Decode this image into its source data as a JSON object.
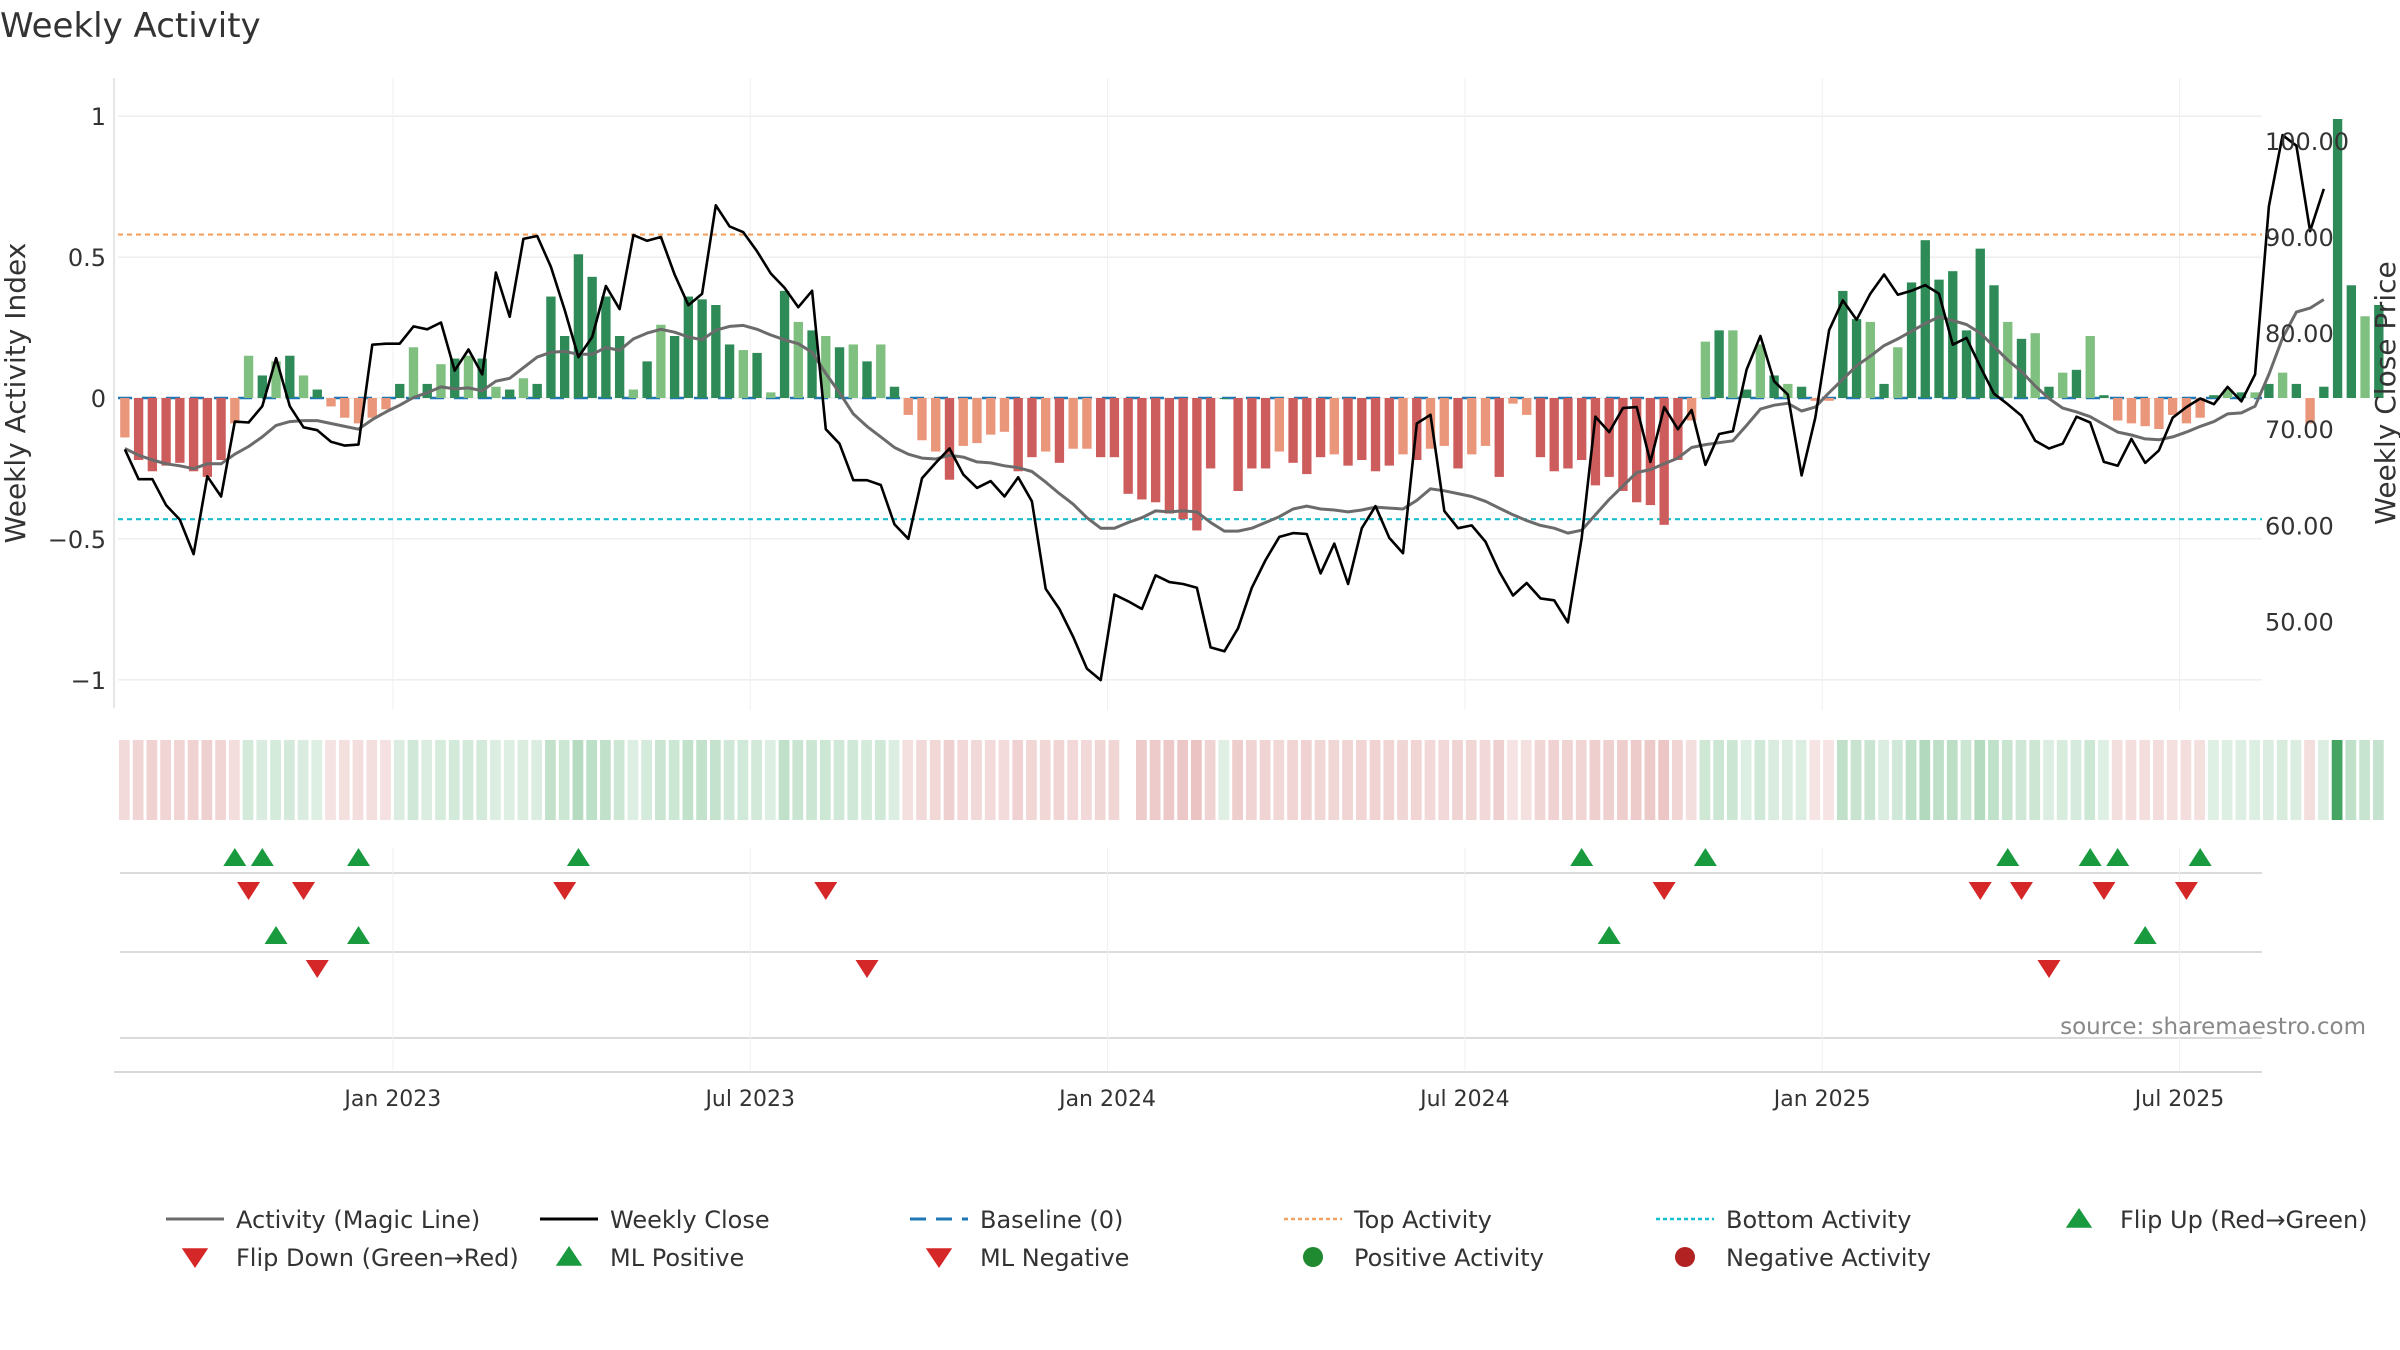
{
  "chart_data": {
    "type": "bar",
    "title": "Weekly Activity",
    "ylabel_left": "Weekly Activity Index",
    "ylabel_right": "Weekly Close Price",
    "ylim_left": [
      -1.1,
      1.1
    ],
    "ylim_right": [
      41.0,
      105.5
    ],
    "left_ticks": [
      {
        "v": 1,
        "label": "1"
      },
      {
        "v": 0.5,
        "label": "0.5"
      },
      {
        "v": 0,
        "label": "0"
      },
      {
        "v": -0.5,
        "label": "−0.5"
      },
      {
        "v": -1,
        "label": "−1"
      }
    ],
    "right_ticks": [
      {
        "v": 100,
        "label": "100.00"
      },
      {
        "v": 90,
        "label": "90.00"
      },
      {
        "v": 80,
        "label": "80.00"
      },
      {
        "v": 70,
        "label": "70.00"
      },
      {
        "v": 60,
        "label": "60.00"
      },
      {
        "v": 50,
        "label": "50.00"
      }
    ],
    "x_ticks": [
      {
        "week": 20,
        "label": "Jan 2023"
      },
      {
        "week": 46,
        "label": "Jul 2023"
      },
      {
        "week": 72,
        "label": "Jan 2024"
      },
      {
        "week": 98,
        "label": "Jul 2024"
      },
      {
        "week": 124,
        "label": "Jan 2025"
      },
      {
        "week": 150,
        "label": "Jul 2025"
      }
    ],
    "x_range_weeks": [
      0,
      156
    ],
    "top_activity": 0.58,
    "bottom_activity": -0.43,
    "baseline": 0,
    "activity": [
      -0.14,
      -0.22,
      -0.26,
      -0.24,
      -0.23,
      -0.26,
      -0.28,
      -0.22,
      -0.09,
      0.15,
      0.08,
      0.13,
      0.15,
      0.08,
      0.03,
      -0.03,
      -0.07,
      -0.09,
      -0.07,
      -0.04,
      0.05,
      0.18,
      0.05,
      0.12,
      0.14,
      0.15,
      0.14,
      0.04,
      0.03,
      0.07,
      0.05,
      0.36,
      0.22,
      0.51,
      0.43,
      0.36,
      0.22,
      0.03,
      0.13,
      0.26,
      0.22,
      0.36,
      0.35,
      0.33,
      0.19,
      0.17,
      0.16,
      0.02,
      0.38,
      0.27,
      0.24,
      0.22,
      0.18,
      0.19,
      0.13,
      0.19,
      0.04,
      -0.06,
      -0.15,
      -0.19,
      -0.29,
      -0.17,
      -0.16,
      -0.13,
      -0.12,
      -0.26,
      -0.21,
      -0.19,
      -0.23,
      -0.18,
      -0.18,
      -0.21,
      -0.21,
      -0.34,
      -0.36,
      -0.37,
      -0.41,
      -0.43,
      -0.47,
      -0.25,
      0,
      -0.33,
      -0.25,
      -0.25,
      -0.19,
      -0.23,
      -0.27,
      -0.21,
      -0.2,
      -0.24,
      -0.22,
      -0.26,
      -0.24,
      -0.2,
      -0.22,
      -0.18,
      -0.17,
      -0.25,
      -0.2,
      -0.17,
      -0.28,
      -0.02,
      -0.06,
      -0.21,
      -0.26,
      -0.25,
      -0.22,
      -0.31,
      -0.28,
      -0.33,
      -0.37,
      -0.38,
      -0.45,
      -0.22,
      -0.08,
      0.2,
      0.24,
      0.24,
      0.03,
      0.19,
      0.08,
      0.05,
      0.04,
      -0.01,
      -0.01,
      0.38,
      0.28,
      0.27,
      0.05,
      0.18,
      0.41,
      0.56,
      0.42,
      0.45,
      0.24,
      0.53,
      0.4,
      0.27,
      0.21,
      0.23,
      0.04,
      0.09,
      0.1,
      0.22,
      0.01,
      -0.08,
      -0.09,
      -0.1,
      -0.11,
      -0.06,
      -0.09,
      -0.07,
      0.01,
      0.03,
      0.02,
      0.02,
      0.05,
      0.09,
      0.05,
      -0.09,
      0.04,
      0.99,
      0.4,
      0.29,
      0.33
    ],
    "weekly_close": [
      67.9,
      64.8,
      64.8,
      62.1,
      60.6,
      57.0,
      65.1,
      63.0,
      70.8,
      70.7,
      72.4,
      77.4,
      72.4,
      70.2,
      69.9,
      68.7,
      68.3,
      68.4,
      78.8,
      78.9,
      78.9,
      80.7,
      80.4,
      81.1,
      76.1,
      78.3,
      75.7,
      86.3,
      81.7,
      89.8,
      90.1,
      86.9,
      82.4,
      77.5,
      79.6,
      84.9,
      82.5,
      90.2,
      89.6,
      90.0,
      86.1,
      82.9,
      84.1,
      93.3,
      91.1,
      90.5,
      88.5,
      86.2,
      84.7,
      82.7,
      84.4,
      70.0,
      68.5,
      64.7,
      64.7,
      64.2,
      60.1,
      58.6,
      64.9,
      66.5,
      68.0,
      65.3,
      63.9,
      64.6,
      63.0,
      65.0,
      62.5,
      53.4,
      51.3,
      48.4,
      45.1,
      43.9,
      52.8,
      52.1,
      51.3,
      54.8,
      54.1,
      53.9,
      53.5,
      47.3,
      46.9,
      49.3,
      53.5,
      56.4,
      58.8,
      59.2,
      59.1,
      55.0,
      58.1,
      53.9,
      59.7,
      62.0,
      58.7,
      57.1,
      70.6,
      71.5,
      61.5,
      59.7,
      60.0,
      58.3,
      55.2,
      52.7,
      54.0,
      52.4,
      52.2,
      49.9,
      58.7,
      71.3,
      69.7,
      72.2,
      72.3,
      66.6,
      72.3,
      70.0,
      72.0,
      66.3,
      69.5,
      69.8,
      76.2,
      79.7,
      75.0,
      73.6,
      65.2,
      71.2,
      80.3,
      83.4,
      81.4,
      84.1,
      86.1,
      84.0,
      84.4,
      85.0,
      84.1,
      78.8,
      79.5,
      76.5,
      73.7,
      72.6,
      71.4,
      68.8,
      68.0,
      68.5,
      71.3,
      70.7,
      66.6,
      66.2,
      69.0,
      66.5,
      67.8,
      71.2,
      72.3,
      73.2,
      72.6,
      74.4,
      72.9,
      75.7,
      93.2,
      100.6,
      99.5,
      90.6,
      95.0
    ],
    "magic_line": [
      68.0,
      67.3,
      66.8,
      66.4,
      66.2,
      65.9,
      66.4,
      66.4,
      67.4,
      68.2,
      69.2,
      70.4,
      70.8,
      70.9,
      70.9,
      70.6,
      70.3,
      70.0,
      71.0,
      71.8,
      72.5,
      73.3,
      73.8,
      74.4,
      74.2,
      74.3,
      74.0,
      75.0,
      75.3,
      76.4,
      77.5,
      78.0,
      78.1,
      77.8,
      77.8,
      78.5,
      78.2,
      79.4,
      80.0,
      80.4,
      80.1,
      79.6,
      79.3,
      80.3,
      80.7,
      80.8,
      80.4,
      79.8,
      79.3,
      78.9,
      78.0,
      75.8,
      73.8,
      71.6,
      70.3,
      69.2,
      68.1,
      67.4,
      67.0,
      66.9,
      67.3,
      67.1,
      66.6,
      66.5,
      66.2,
      66.0,
      65.6,
      64.5,
      63.3,
      62.2,
      60.8,
      59.7,
      59.7,
      60.3,
      60.8,
      61.5,
      61.4,
      61.5,
      61.4,
      60.3,
      59.4,
      59.4,
      59.7,
      60.3,
      60.9,
      61.7,
      62.0,
      61.7,
      61.6,
      61.4,
      61.6,
      61.9,
      61.8,
      61.7,
      62.6,
      63.8,
      63.6,
      63.3,
      63.0,
      62.5,
      61.8,
      61.1,
      60.5,
      60.0,
      59.7,
      59.2,
      59.5,
      61.1,
      62.7,
      64.1,
      65.5,
      65.8,
      66.4,
      67.0,
      68.1,
      68.4,
      68.6,
      68.8,
      70.4,
      72.1,
      72.5,
      72.7,
      71.9,
      72.3,
      73.8,
      75.2,
      76.6,
      77.6,
      78.7,
      79.4,
      80.2,
      81.0,
      81.7,
      81.3,
      80.9,
      80.0,
      78.6,
      77.2,
      76.0,
      74.5,
      73.2,
      72.2,
      71.8,
      71.3,
      70.5,
      69.7,
      69.4,
      69.0,
      68.9,
      69.2,
      69.7,
      70.3,
      70.8,
      71.6,
      71.7,
      72.4,
      75.7,
      79.5,
      82.2,
      82.6,
      83.5
    ],
    "heat_strip": {
      "gap_week": 73
    },
    "signal_rows": {
      "row1_up": [
        8,
        10,
        17,
        33,
        106,
        115,
        137,
        143,
        145,
        151
      ],
      "row1_down": [
        9,
        13,
        32,
        51,
        112,
        135,
        138,
        144,
        150
      ],
      "row2_up": [
        11,
        17,
        108,
        147
      ],
      "row2_down": [
        14,
        54,
        140
      ],
      "row3": []
    },
    "source": "source: sharemaestro.com",
    "legend": [
      {
        "label": "Activity (Magic Line)",
        "marker": "line",
        "color": "#6b6b6b"
      },
      {
        "label": "Weekly Close",
        "marker": "line",
        "color": "#000000"
      },
      {
        "label": "Baseline (0)",
        "marker": "dash",
        "color": "#1f77b4"
      },
      {
        "label": "Top Activity",
        "marker": "dot-line",
        "color": "#f4a261"
      },
      {
        "label": "Bottom Activity",
        "marker": "dot-line",
        "color": "#17becf"
      },
      {
        "label": "Flip Up (Red→Green)",
        "marker": "tri-up",
        "color": "#1a9a3f"
      },
      {
        "label": "Flip Down (Green→Red)",
        "marker": "tri-down",
        "color": "#d62728"
      },
      {
        "label": "ML Positive",
        "marker": "tri-up",
        "color": "#1a9a3f"
      },
      {
        "label": "ML Negative",
        "marker": "tri-down",
        "color": "#d62728"
      },
      {
        "label": "Positive Activity",
        "marker": "circle",
        "color": "#1f8a2f"
      },
      {
        "label": "Negative Activity",
        "marker": "circle",
        "color": "#b22222"
      }
    ],
    "colors": {
      "pos_dark": "#2e8b57",
      "pos_light": "#7fbf7f",
      "neg_dark": "#cd5c5c",
      "neg_light": "#e9967a",
      "close": "#000000",
      "magic": "#6b6b6b",
      "grid": "#e5e5e5"
    }
  }
}
